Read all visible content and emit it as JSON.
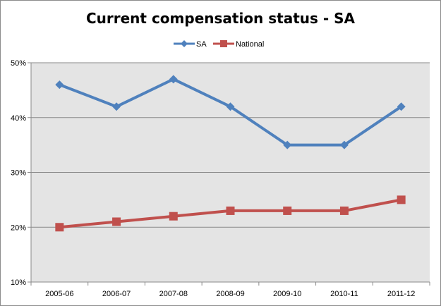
{
  "chart_data": {
    "type": "line",
    "title": "Current compensation status - SA",
    "categories": [
      "2005-06",
      "2006-07",
      "2007-08",
      "2008-09",
      "2009-10",
      "2010-11",
      "2011-12"
    ],
    "series": [
      {
        "name": "SA",
        "values": [
          46,
          42,
          47,
          42,
          35,
          35,
          42
        ],
        "color": "#4f81bd",
        "marker": "diamond"
      },
      {
        "name": "National",
        "values": [
          20,
          21,
          22,
          23,
          23,
          23,
          25
        ],
        "color": "#c0504d",
        "marker": "square"
      }
    ],
    "ylim": [
      10,
      50
    ],
    "yticks": [
      "10%",
      "20%",
      "30%",
      "40%",
      "50%"
    ],
    "grid": true,
    "legend": "top-center",
    "plot_bg": "#e4e4e4"
  }
}
